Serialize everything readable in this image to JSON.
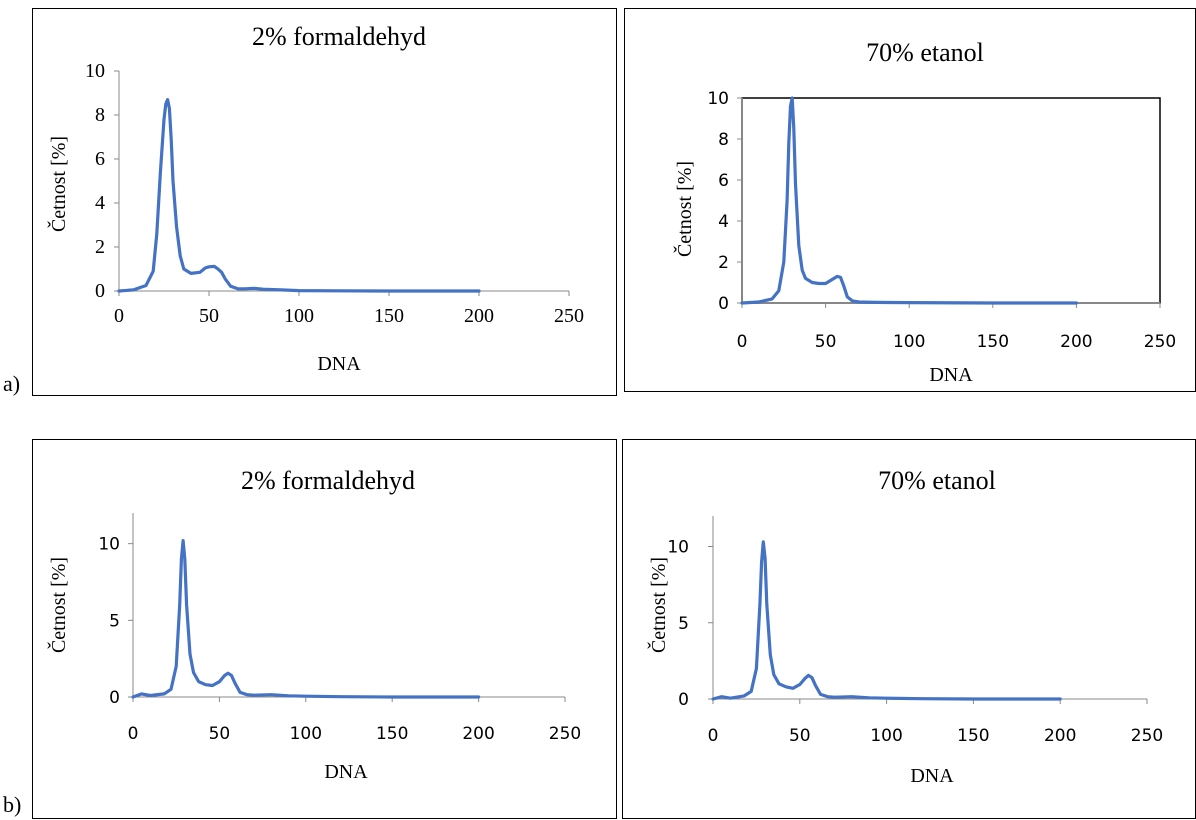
{
  "panel_labels": [
    "a)",
    "b)"
  ],
  "line_color": "#4472C4",
  "chart_data": [
    {
      "type": "line",
      "panel": "a",
      "title": "2% formaldehyd",
      "xlabel": "DNA",
      "ylabel": "Četnost [%]",
      "xlim": [
        0,
        250
      ],
      "ylim": [
        0,
        10
      ],
      "xticks": [
        0,
        50,
        100,
        150,
        200,
        250
      ],
      "yticks": [
        0,
        2,
        4,
        6,
        8,
        10
      ],
      "plot_area_border": false,
      "series": [
        {
          "x": [
            0,
            8,
            15,
            19,
            21,
            23,
            25,
            26,
            27,
            28,
            29,
            30,
            32,
            34,
            36,
            40,
            45,
            48,
            50,
            53,
            55,
            57,
            59,
            62,
            66,
            70,
            75,
            80,
            90,
            100,
            120,
            150,
            200
          ],
          "y": [
            0,
            0.05,
            0.25,
            0.9,
            2.6,
            5.4,
            7.8,
            8.5,
            8.7,
            8.3,
            6.9,
            5.0,
            2.9,
            1.6,
            1.0,
            0.8,
            0.85,
            1.05,
            1.1,
            1.12,
            1.0,
            0.85,
            0.55,
            0.22,
            0.1,
            0.1,
            0.12,
            0.08,
            0.05,
            0.02,
            0.01,
            0,
            0
          ]
        }
      ]
    },
    {
      "type": "line",
      "panel": "a",
      "title": "70% etanol",
      "xlabel": "DNA",
      "ylabel": "Četnost [%]",
      "xlim": [
        0,
        250
      ],
      "ylim": [
        0,
        10
      ],
      "xticks": [
        0,
        50,
        100,
        150,
        200,
        250
      ],
      "yticks": [
        0,
        2,
        4,
        6,
        8,
        10
      ],
      "plot_area_border": true,
      "series": [
        {
          "x": [
            0,
            10,
            18,
            22,
            25,
            27,
            28,
            29,
            30,
            31,
            32,
            34,
            36,
            38,
            42,
            46,
            50,
            54,
            57,
            59,
            61,
            63,
            66,
            70,
            80,
            100,
            150,
            200
          ],
          "y": [
            0,
            0.05,
            0.2,
            0.6,
            2.0,
            5.0,
            7.8,
            9.6,
            10.0,
            8.5,
            5.8,
            2.8,
            1.6,
            1.2,
            1.0,
            0.95,
            0.95,
            1.15,
            1.3,
            1.25,
            0.8,
            0.3,
            0.1,
            0.05,
            0.03,
            0.02,
            0,
            0
          ]
        }
      ]
    },
    {
      "type": "line",
      "panel": "b",
      "title": "2% formaldehyd",
      "xlabel": "DNA",
      "ylabel": "Četnost [%]",
      "xlim": [
        0,
        250
      ],
      "ylim": [
        0,
        12
      ],
      "xticks": [
        0,
        50,
        100,
        150,
        200,
        250
      ],
      "yticks": [
        0,
        5,
        10
      ],
      "plot_area_border": false,
      "series": [
        {
          "x": [
            0,
            5,
            10,
            18,
            22,
            25,
            27,
            28,
            29,
            30,
            31,
            33,
            35,
            38,
            42,
            46,
            50,
            53,
            55,
            57,
            59,
            62,
            66,
            70,
            80,
            90,
            100,
            120,
            150,
            200
          ],
          "y": [
            0,
            0.2,
            0.1,
            0.2,
            0.5,
            2.0,
            6.0,
            9.0,
            10.2,
            9.0,
            6.0,
            2.8,
            1.6,
            1.0,
            0.8,
            0.75,
            1.0,
            1.4,
            1.55,
            1.4,
            0.9,
            0.3,
            0.15,
            0.12,
            0.15,
            0.08,
            0.05,
            0.02,
            0,
            0
          ]
        }
      ]
    },
    {
      "type": "line",
      "panel": "b",
      "title": "70% etanol",
      "xlabel": "DNA",
      "ylabel": "Četnost [%]",
      "xlim": [
        0,
        250
      ],
      "ylim": [
        0,
        12
      ],
      "xticks": [
        0,
        50,
        100,
        150,
        200,
        250
      ],
      "yticks": [
        0,
        5,
        10
      ],
      "plot_area_border": false,
      "series": [
        {
          "x": [
            0,
            5,
            10,
            18,
            22,
            25,
            27,
            28,
            29,
            30,
            31,
            33,
            35,
            38,
            42,
            46,
            50,
            53,
            55,
            57,
            59,
            62,
            66,
            70,
            80,
            90,
            100,
            120,
            150,
            200
          ],
          "y": [
            0,
            0.15,
            0.05,
            0.2,
            0.5,
            2.0,
            6.2,
            9.0,
            10.3,
            9.2,
            6.2,
            2.9,
            1.6,
            1.0,
            0.8,
            0.7,
            0.95,
            1.35,
            1.55,
            1.4,
            0.9,
            0.3,
            0.15,
            0.12,
            0.15,
            0.08,
            0.05,
            0.02,
            0,
            0
          ]
        }
      ]
    }
  ]
}
